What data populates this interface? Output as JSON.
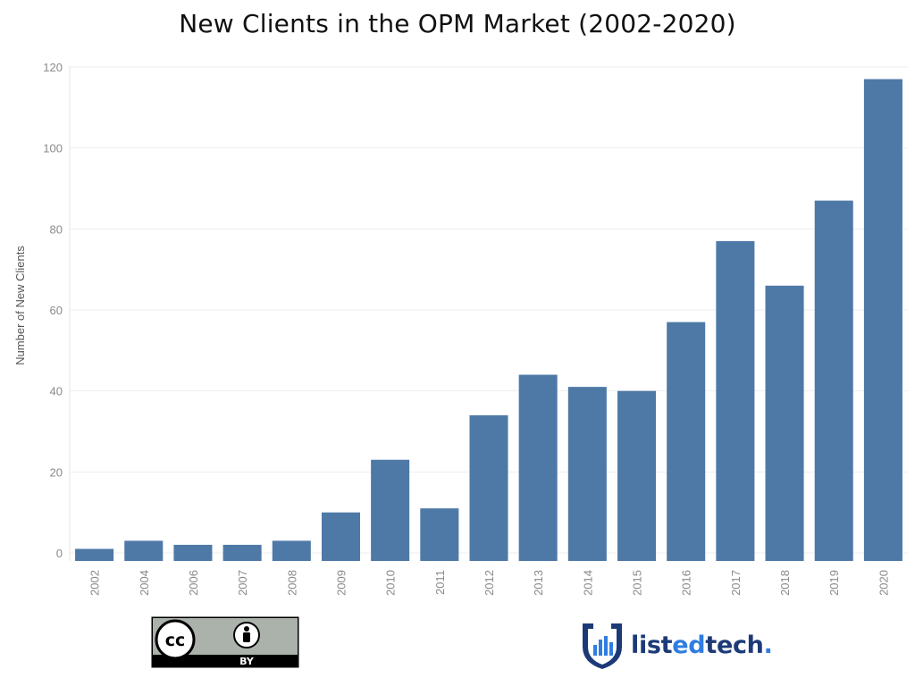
{
  "chart_data": {
    "type": "bar",
    "title": "New Clients in the OPM Market (2002-2020)",
    "ylabel": "Number of New Clients",
    "xlabel": "",
    "categories": [
      "2002",
      "2004",
      "2006",
      "2007",
      "2008",
      "2009",
      "2010",
      "2011",
      "2012",
      "2013",
      "2014",
      "2015",
      "2016",
      "2017",
      "2018",
      "2019",
      "2020"
    ],
    "values": [
      1,
      3,
      2,
      2,
      3,
      10,
      23,
      11,
      34,
      44,
      41,
      40,
      57,
      77,
      66,
      87,
      117
    ],
    "ylim": [
      0,
      120
    ],
    "yticks": [
      0,
      20,
      40,
      60,
      80,
      100,
      120
    ],
    "grid": true,
    "bar_color": "#4e79a7",
    "grid_color": "#eeeeee"
  },
  "footer": {
    "license_badge": {
      "cc": "cc",
      "by": "BY"
    },
    "logo": {
      "name_part1": "list",
      "name_part2": "ed",
      "name_part3": "tech",
      "dot": ".",
      "icon": "listedtech-shield-icon"
    }
  }
}
